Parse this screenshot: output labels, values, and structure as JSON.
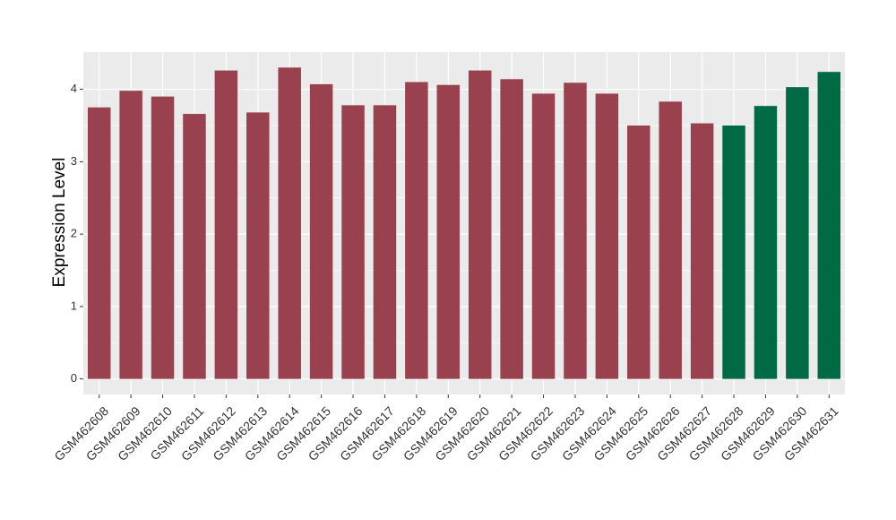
{
  "chart_data": {
    "type": "bar",
    "y_label": "Expression Level",
    "categories": [
      "GSM462608",
      "GSM462609",
      "GSM462610",
      "GSM462611",
      "GSM462612",
      "GSM462613",
      "GSM462614",
      "GSM462615",
      "GSM462616",
      "GSM462617",
      "GSM462618",
      "GSM462619",
      "GSM462620",
      "GSM462621",
      "GSM462622",
      "GSM462623",
      "GSM462624",
      "GSM462625",
      "GSM462626",
      "GSM462627",
      "GSM462628",
      "GSM462629",
      "GSM462630",
      "GSM462631"
    ],
    "values": [
      3.75,
      3.98,
      3.9,
      3.66,
      4.26,
      3.68,
      4.3,
      4.07,
      3.78,
      3.78,
      4.1,
      4.06,
      4.26,
      4.14,
      3.94,
      4.09,
      3.94,
      3.5,
      3.83,
      3.53,
      3.5,
      3.77,
      4.03,
      4.24
    ],
    "colors": [
      "#9a4150",
      "#9a4150",
      "#9a4150",
      "#9a4150",
      "#9a4150",
      "#9a4150",
      "#9a4150",
      "#9a4150",
      "#9a4150",
      "#9a4150",
      "#9a4150",
      "#9a4150",
      "#9a4150",
      "#9a4150",
      "#9a4150",
      "#9a4150",
      "#9a4150",
      "#9a4150",
      "#9a4150",
      "#9a4150",
      "#006a45",
      "#006a45",
      "#006a45",
      "#006a45"
    ],
    "ylim": [
      -0.215,
      4.515
    ],
    "yticks": [
      0,
      1,
      2,
      3,
      4
    ],
    "grid": true
  }
}
